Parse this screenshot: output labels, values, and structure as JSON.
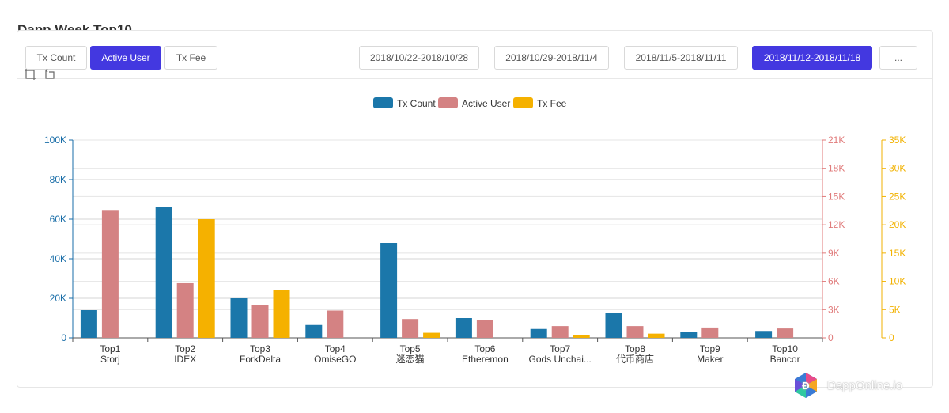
{
  "page": {
    "title": "Dapp Week Top10"
  },
  "tabs": [
    {
      "label": "Tx Count",
      "active": false
    },
    {
      "label": "Active User",
      "active": true
    },
    {
      "label": "Tx Fee",
      "active": false
    }
  ],
  "date_ranges": [
    {
      "label": "2018/10/22-2018/10/28",
      "active": false
    },
    {
      "label": "2018/10/29-2018/11/4",
      "active": false
    },
    {
      "label": "2018/11/5-2018/11/11",
      "active": false
    },
    {
      "label": "2018/11/12-2018/11/18",
      "active": true
    },
    {
      "label": "...",
      "active": false
    }
  ],
  "toolbox": {
    "icons": [
      "zoom-icon",
      "zoom-reset-icon"
    ]
  },
  "watermark": {
    "text": "DappOnline.io"
  },
  "chart_data": {
    "type": "bar",
    "legend_position": "top-center",
    "grid": true,
    "categories": [
      [
        "Top1",
        "Storj"
      ],
      [
        "Top2",
        "IDEX"
      ],
      [
        "Top3",
        "ForkDelta"
      ],
      [
        "Top4",
        "OmiseGO"
      ],
      [
        "Top5",
        "迷恋猫"
      ],
      [
        "Top6",
        "Etheremon"
      ],
      [
        "Top7",
        "Gods Unchai..."
      ],
      [
        "Top8",
        "代币商店"
      ],
      [
        "Top9",
        "Maker"
      ],
      [
        "Top10",
        "Bancor"
      ]
    ],
    "axes": {
      "y_left": {
        "min": 0,
        "max": 100000,
        "ticks": [
          "0",
          "20K",
          "40K",
          "60K",
          "80K",
          "100K"
        ],
        "color": "#1a6ea8"
      },
      "y_right1": {
        "min": 0,
        "max": 21000,
        "ticks": [
          "0",
          "3K",
          "6K",
          "9K",
          "12K",
          "15K",
          "18K",
          "21K"
        ],
        "color": "#e07a7a"
      },
      "y_right2": {
        "min": 0,
        "max": 35000,
        "ticks": [
          "0",
          "5K",
          "10K",
          "15K",
          "20K",
          "25K",
          "30K",
          "35K"
        ],
        "color": "#f2b200"
      }
    },
    "series": [
      {
        "name": "Tx Count",
        "color": "#1b77aa",
        "axis": "y_left",
        "values": [
          14000,
          66000,
          20000,
          6500,
          48000,
          10000,
          4500,
          12500,
          3000,
          3500
        ]
      },
      {
        "name": "Active User",
        "color": "#d48283",
        "axis": "y_right1",
        "values": [
          13500,
          5800,
          3500,
          2900,
          2000,
          1900,
          1250,
          1250,
          1100,
          1000
        ]
      },
      {
        "name": "Tx Fee",
        "color": "#f5b100",
        "axis": "y_right2",
        "values": [
          0,
          21000,
          8400,
          0,
          900,
          0,
          500,
          750,
          0,
          0
        ]
      }
    ]
  }
}
